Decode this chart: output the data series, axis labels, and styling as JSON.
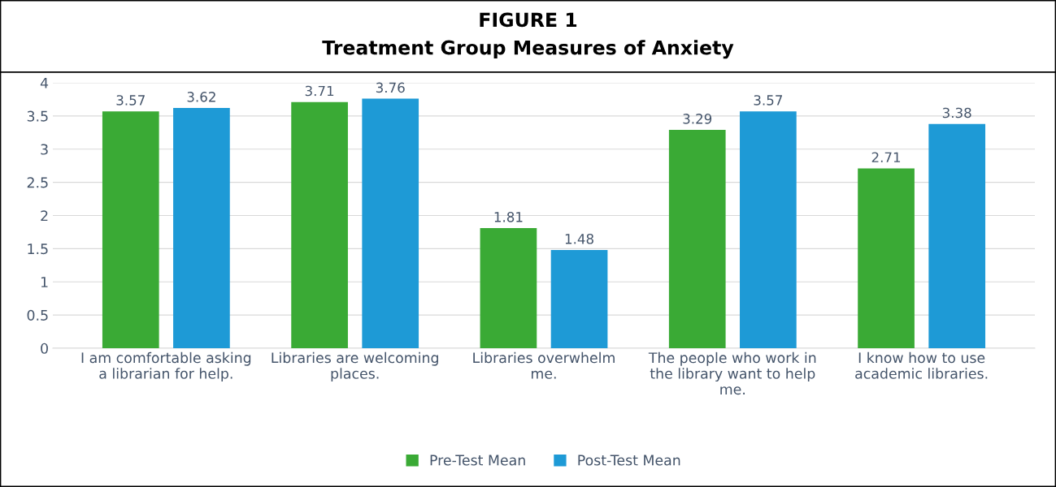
{
  "chart_data": {
    "type": "bar",
    "title": "FIGURE 1",
    "subtitle": "Treatment Group Measures of Anxiety",
    "categories": [
      "I am comfortable asking\na librarian for help.",
      "Libraries are welcoming\nplaces.",
      "Libraries overwhelm\nme.",
      "The people who work in\nthe library want to help\nme.",
      "I know how to use\nacademic libraries."
    ],
    "series": [
      {
        "name": "Pre-Test Mean",
        "color": "#3aaa35",
        "values": [
          3.57,
          3.71,
          1.81,
          3.29,
          2.71
        ]
      },
      {
        "name": "Post-Test Mean",
        "color": "#1e9ad6",
        "values": [
          3.62,
          3.76,
          1.48,
          3.57,
          3.38
        ]
      }
    ],
    "ylim": [
      0,
      4
    ],
    "yticks": [
      0,
      0.5,
      1,
      1.5,
      2,
      2.5,
      3,
      3.5,
      4
    ],
    "grid": "y",
    "legend": "bottom",
    "data_labels": true
  }
}
